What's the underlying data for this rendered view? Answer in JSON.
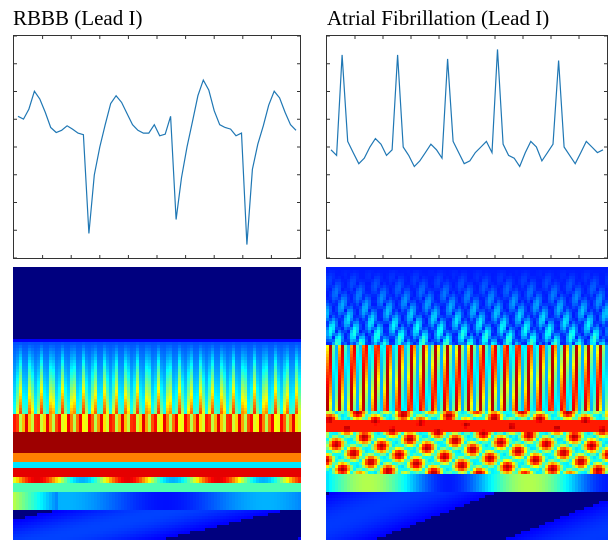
{
  "panels": {
    "left_title": "RBBB (Lead I)",
    "right_title": "Atrial Fibrillation (Lead I)"
  },
  "colors": {
    "signal_line": "#1f77b4",
    "axes": "#333333",
    "colormap": [
      "#00007f",
      "#0000ff",
      "#00ffff",
      "#ffff00",
      "#ff0000",
      "#7f0000"
    ]
  },
  "chart_data": [
    {
      "type": "line",
      "title": "RBBB (Lead I)",
      "xlabel": "",
      "ylabel": "",
      "grid": false,
      "series": [
        {
          "y": [
            0.35,
            0.3,
            0.48,
            0.8,
            0.66,
            0.42,
            0.15,
            0.06,
            0.1,
            0.18,
            0.12,
            0.05,
            0.02,
            -1.75,
            -0.7,
            -0.2,
            0.2,
            0.58,
            0.72,
            0.6,
            0.4,
            0.2,
            0.1,
            0.05,
            0.05,
            0.2,
            0.0,
            0.03,
            0.35,
            -1.5,
            -0.75,
            -0.2,
            0.25,
            0.72,
            1.0,
            0.82,
            0.45,
            0.2,
            0.15,
            0.12,
            0.0,
            0.05,
            -1.95,
            -0.6,
            -0.15,
            0.18,
            0.55,
            0.8,
            0.68,
            0.42,
            0.2,
            0.1
          ]
        }
      ]
    },
    {
      "type": "line",
      "title": "Atrial Fibrillation (Lead I)",
      "xlabel": "",
      "ylabel": "",
      "grid": false,
      "series": [
        {
          "y": [
            -0.25,
            -0.35,
            1.45,
            -0.1,
            -0.3,
            -0.5,
            -0.4,
            -0.2,
            -0.05,
            -0.15,
            -0.35,
            -0.25,
            1.45,
            -0.2,
            -0.35,
            -0.55,
            -0.45,
            -0.3,
            -0.15,
            -0.25,
            -0.4,
            1.38,
            -0.1,
            -0.3,
            -0.5,
            -0.45,
            -0.3,
            -0.2,
            -0.1,
            -0.3,
            1.55,
            -0.15,
            -0.35,
            -0.4,
            -0.55,
            -0.3,
            -0.1,
            -0.2,
            -0.45,
            -0.3,
            -0.15,
            1.35,
            -0.2,
            -0.35,
            -0.5,
            -0.3,
            -0.1,
            -0.2,
            -0.3,
            -0.25
          ]
        }
      ]
    },
    {
      "type": "heatmap",
      "title": "",
      "xlabel": "",
      "ylabel": ""
    },
    {
      "type": "heatmap",
      "title": "",
      "xlabel": "",
      "ylabel": ""
    }
  ]
}
